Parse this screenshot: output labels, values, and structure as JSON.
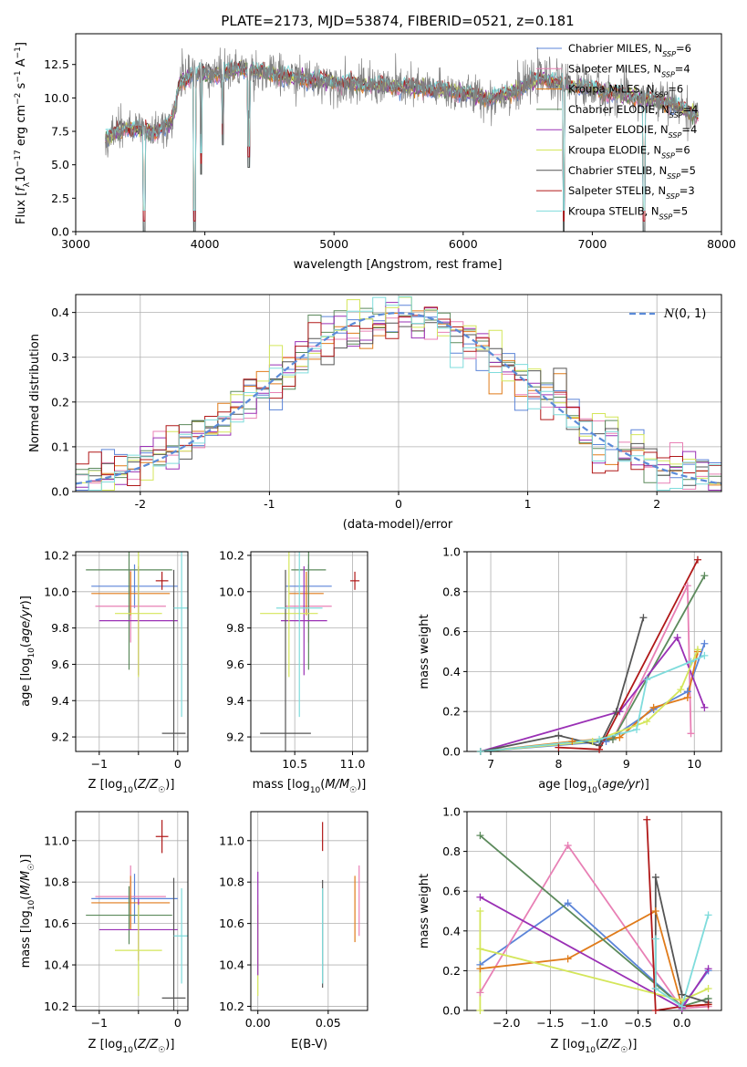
{
  "figure_title": "PLATE=2173, MJD=53874, FIBERID=0521, z=0.181",
  "colors": {
    "chabrier_miles": "#5b84d8",
    "salpeter_miles": "#e880b5",
    "kroupa_miles": "#e07b1a",
    "chabrier_elodie": "#5c8a5c",
    "salpeter_elodie": "#9a30b5",
    "kroupa_elodie": "#d4e65a",
    "chabrier_stelib": "#555555",
    "salpeter_stelib": "#b01818",
    "kroupa_stelib": "#7fdcdc",
    "data": "#808080",
    "normal_curve": "#5b8bd8",
    "grid": "#b0b0b0"
  },
  "chart_data": [
    {
      "id": "spectrum",
      "type": "line",
      "title": "PLATE=2173, MJD=53874, FIBERID=0521, z=0.181",
      "xlabel": "wavelength [Angstrom, rest frame]",
      "ylabel": "Flux [f_λ 10^-17 erg cm^-2 s^-1 A^-1]",
      "xlim": [
        3000,
        8000
      ],
      "ylim": [
        0,
        14.8
      ],
      "xticks": [
        3000,
        4000,
        5000,
        6000,
        7000,
        8000
      ],
      "yticks": [
        0.0,
        2.5,
        5.0,
        7.5,
        10.0,
        12.5
      ],
      "grid": false,
      "legend_position": "upper right",
      "legend": [
        "Chabrier MILES, N_SSP=6",
        "Salpeter MILES, N_SSP=4",
        "Kroupa MILES, N_SSP=6",
        "Chabrier ELODIE, N_SSP=4",
        "Salpeter ELODIE, N_SSP=4",
        "Kroupa ELODIE, N_SSP=6",
        "Chabrier STELIB, N_SSP=5",
        "Salpeter STELIB, N_SSP=3",
        "Kroupa STELIB, N_SSP=5"
      ],
      "continuum": [
        [
          3230,
          7.0
        ],
        [
          3400,
          7.8
        ],
        [
          3600,
          7.4
        ],
        [
          3750,
          8.3
        ],
        [
          3800,
          11.0
        ],
        [
          3900,
          11.8
        ],
        [
          4100,
          11.8
        ],
        [
          4300,
          12.2
        ],
        [
          4600,
          11.6
        ],
        [
          4900,
          11.3
        ],
        [
          5200,
          11.0
        ],
        [
          5600,
          10.8
        ],
        [
          6000,
          10.4
        ],
        [
          6200,
          9.9
        ],
        [
          6400,
          10.5
        ],
        [
          6600,
          11.5
        ],
        [
          6800,
          11.0
        ],
        [
          7200,
          10.3
        ],
        [
          7600,
          9.6
        ],
        [
          7820,
          8.7
        ]
      ],
      "dips": [
        [
          3530,
          0.0
        ],
        [
          3920,
          0.0
        ],
        [
          4140,
          6.5
        ],
        [
          4340,
          4.8
        ],
        [
          3970,
          4.3
        ],
        [
          6780,
          0.0
        ],
        [
          7400,
          0.0
        ]
      ]
    },
    {
      "id": "residuals",
      "type": "histogram",
      "xlabel": "(data-model)/error",
      "ylabel": "Normed distribution",
      "xlim": [
        -2.5,
        2.5
      ],
      "ylim": [
        0,
        0.44
      ],
      "xticks": [
        -2,
        -1,
        0,
        1,
        2
      ],
      "yticks": [
        0.0,
        0.1,
        0.2,
        0.3,
        0.4
      ],
      "grid": true,
      "legend_position": "upper right",
      "curve_label": "N(0,1)",
      "bin_width": 0.1
    },
    {
      "id": "age_vs_Z",
      "type": "scatter",
      "xlabel": "Z [log10(Z/Z☉)]",
      "ylabel": "age [log10(age/yr)]",
      "xlim": [
        -1.3,
        0.13
      ],
      "ylim": [
        9.12,
        10.22
      ],
      "xticks": [
        -1,
        -0.5,
        0
      ],
      "ytick_labels": [
        "9.2",
        "9.4",
        "9.6",
        "9.8",
        "10.0",
        "10.2"
      ],
      "xtick_labels": [
        "−1",
        "",
        "0"
      ],
      "grid": true,
      "points": [
        {
          "series": "chabrier_miles",
          "x": -0.55,
          "xerr": 0.55,
          "y": 10.03,
          "yerr": 0.12
        },
        {
          "series": "salpeter_miles",
          "x": -0.6,
          "xerr": 0.45,
          "y": 9.92,
          "yerr": 0.2
        },
        {
          "series": "kroupa_miles",
          "x": -0.6,
          "xerr": 0.5,
          "y": 9.99,
          "yerr": 0.12
        },
        {
          "series": "chabrier_elodie",
          "x": -0.62,
          "xerr": 0.55,
          "y": 10.12,
          "yerr": 0.55
        },
        {
          "series": "salpeter_elodie",
          "x": -0.5,
          "xerr": 0.5,
          "y": 9.84,
          "yerr": 0.3
        },
        {
          "series": "kroupa_elodie",
          "x": -0.5,
          "xerr": 0.3,
          "y": 9.88,
          "yerr": 0.35
        },
        {
          "series": "chabrier_stelib",
          "x": -0.05,
          "xerr": 0.15,
          "y": 9.22,
          "yerr": 0.9
        },
        {
          "series": "salpeter_stelib",
          "x": -0.2,
          "xerr": 0.08,
          "y": 10.06,
          "yerr": 0.05
        },
        {
          "series": "kroupa_stelib",
          "x": 0.05,
          "xerr": 0.1,
          "y": 9.91,
          "yerr": 0.6
        }
      ]
    },
    {
      "id": "age_vs_mass",
      "type": "scatter",
      "xlabel": "mass [log10(M/M☉)]",
      "ylabel": "",
      "xlim": [
        10.12,
        11.13
      ],
      "ylim": [
        9.12,
        10.22
      ],
      "xticks": [
        10.5,
        11.0
      ],
      "xtick_labels": [
        "10.5",
        "11.0"
      ],
      "ytick_labels": [
        "9.2",
        "9.4",
        "9.6",
        "9.8",
        "10.0",
        "10.2"
      ],
      "grid": true,
      "points": [
        {
          "series": "chabrier_miles",
          "x": 10.62,
          "xerr": 0.2,
          "y": 10.03,
          "yerr": 0.12
        },
        {
          "series": "salpeter_miles",
          "x": 10.62,
          "xerr": 0.2,
          "y": 9.92,
          "yerr": 0.2
        },
        {
          "series": "kroupa_miles",
          "x": 10.6,
          "xerr": 0.15,
          "y": 9.99,
          "yerr": 0.12
        },
        {
          "series": "chabrier_elodie",
          "x": 10.62,
          "xerr": 0.15,
          "y": 10.12,
          "yerr": 0.55
        },
        {
          "series": "salpeter_elodie",
          "x": 10.58,
          "xerr": 0.2,
          "y": 9.84,
          "yerr": 0.3
        },
        {
          "series": "kroupa_elodie",
          "x": 10.45,
          "xerr": 0.25,
          "y": 9.88,
          "yerr": 0.35
        },
        {
          "series": "chabrier_stelib",
          "x": 10.42,
          "xerr": 0.22,
          "y": 9.22,
          "yerr": 0.9
        },
        {
          "series": "salpeter_stelib",
          "x": 11.02,
          "xerr": 0.04,
          "y": 10.06,
          "yerr": 0.05
        },
        {
          "series": "kroupa_stelib",
          "x": 10.54,
          "xerr": 0.2,
          "y": 9.91,
          "yerr": 0.6
        }
      ]
    },
    {
      "id": "massweight_vs_age",
      "type": "line",
      "xlabel": "age [log10(age/yr)]",
      "ylabel": "mass weight",
      "xlim": [
        6.65,
        10.4
      ],
      "ylim": [
        0,
        1.0
      ],
      "xticks": [
        7,
        8,
        9,
        10
      ],
      "yticks": [
        0.0,
        0.2,
        0.4,
        0.6,
        0.8,
        1.0
      ],
      "grid": true,
      "series": [
        {
          "name": "chabrier_miles",
          "x": [
            6.85,
            8.7,
            9.4,
            9.9,
            10.15
          ],
          "y": [
            0.0,
            0.05,
            0.21,
            0.3,
            0.54
          ]
        },
        {
          "name": "salpeter_miles",
          "x": [
            6.85,
            8.8,
            9.9,
            9.95
          ],
          "y": [
            0.0,
            0.06,
            0.83,
            0.09
          ]
        },
        {
          "name": "kroupa_miles",
          "x": [
            6.85,
            8.2,
            8.9,
            9.4,
            9.9,
            10.05
          ],
          "y": [
            0.0,
            0.05,
            0.07,
            0.22,
            0.27,
            0.5
          ]
        },
        {
          "name": "chabrier_elodie",
          "x": [
            6.85,
            8.8,
            10.15
          ],
          "y": [
            0.0,
            0.06,
            0.88
          ]
        },
        {
          "name": "salpeter_elodie",
          "x": [
            6.85,
            8.9,
            9.75,
            10.15
          ],
          "y": [
            0.0,
            0.2,
            0.57,
            0.22
          ]
        },
        {
          "name": "kroupa_elodie",
          "x": [
            6.85,
            8.5,
            9.3,
            9.8,
            10.05
          ],
          "y": [
            0.0,
            0.05,
            0.15,
            0.31,
            0.51
          ]
        },
        {
          "name": "chabrier_stelib",
          "x": [
            6.85,
            8.0,
            8.6,
            8.85,
            9.25
          ],
          "y": [
            0.0,
            0.08,
            0.03,
            0.2,
            0.67
          ]
        },
        {
          "name": "salpeter_stelib",
          "x": [
            8.0,
            8.6,
            10.05
          ],
          "y": [
            0.02,
            0.01,
            0.96
          ]
        },
        {
          "name": "kroupa_stelib",
          "x": [
            6.85,
            8.6,
            9.15,
            9.3,
            9.95,
            10.15
          ],
          "y": [
            0.0,
            0.06,
            0.11,
            0.36,
            0.45,
            0.48
          ]
        }
      ]
    },
    {
      "id": "mass_vs_Z",
      "type": "scatter",
      "xlabel": "Z [log10(Z/Z☉)]",
      "ylabel": "mass [log10(M/M☉)]",
      "xlim": [
        -1.3,
        0.13
      ],
      "ylim": [
        10.18,
        11.14
      ],
      "xticks": [
        -1,
        -0.5,
        0
      ],
      "xtick_labels": [
        "−1",
        "",
        "0"
      ],
      "ytick_labels": [
        "10.2",
        "10.4",
        "10.6",
        "10.8",
        "11.0"
      ],
      "grid": true,
      "points": [
        {
          "series": "chabrier_miles",
          "x": -0.55,
          "xerr": 0.55,
          "y": 10.72,
          "yerr": 0.12
        },
        {
          "series": "salpeter_miles",
          "x": -0.6,
          "xerr": 0.45,
          "y": 10.73,
          "yerr": 0.15
        },
        {
          "series": "kroupa_miles",
          "x": -0.6,
          "xerr": 0.5,
          "y": 10.7,
          "yerr": 0.13
        },
        {
          "series": "chabrier_elodie",
          "x": -0.62,
          "xerr": 0.55,
          "y": 10.64,
          "yerr": 0.14
        },
        {
          "series": "salpeter_elodie",
          "x": -0.5,
          "xerr": 0.5,
          "y": 10.57,
          "yerr": 0.15
        },
        {
          "series": "kroupa_elodie",
          "x": -0.5,
          "xerr": 0.3,
          "y": 10.47,
          "yerr": 0.22
        },
        {
          "series": "chabrier_stelib",
          "x": -0.05,
          "xerr": 0.15,
          "y": 10.24,
          "yerr": 0.58
        },
        {
          "series": "salpeter_stelib",
          "x": -0.2,
          "xerr": 0.08,
          "y": 11.02,
          "yerr": 0.08
        },
        {
          "series": "kroupa_stelib",
          "x": 0.05,
          "xerr": 0.1,
          "y": 10.54,
          "yerr": 0.23
        }
      ]
    },
    {
      "id": "mass_vs_ebv",
      "type": "scatter",
      "xlabel": "E(B-V)",
      "ylabel": "",
      "xlim": [
        -0.005,
        0.078
      ],
      "ylim": [
        10.18,
        11.14
      ],
      "xticks": [
        0.0,
        0.05
      ],
      "xtick_labels": [
        "0.00",
        "0.05"
      ],
      "ytick_labels": [
        "10.2",
        "10.4",
        "10.6",
        "10.8",
        "11.0"
      ],
      "grid": true,
      "points": [
        {
          "series": "kroupa_elodie",
          "x": 0.0,
          "y": 10.47,
          "yerr": 0.22
        },
        {
          "series": "salpeter_elodie",
          "x": 0.0,
          "y": 10.6,
          "yerr": 0.25
        },
        {
          "series": "chabrier_stelib",
          "x": 0.046,
          "y": 10.55,
          "yerr": 0.26
        },
        {
          "series": "kroupa_stelib",
          "x": 0.046,
          "y": 10.54,
          "yerr": 0.23
        },
        {
          "series": "salpeter_stelib",
          "x": 0.046,
          "y": 11.02,
          "yerr": 0.07
        },
        {
          "series": "kroupa_miles",
          "x": 0.069,
          "y": 10.67,
          "yerr": 0.16
        },
        {
          "series": "salpeter_miles",
          "x": 0.072,
          "y": 10.71,
          "yerr": 0.17
        }
      ]
    },
    {
      "id": "massweight_vs_Z",
      "type": "line",
      "xlabel": "Z [log10(Z/Z☉)]",
      "ylabel": "mass weight",
      "xlim": [
        -2.45,
        0.45
      ],
      "ylim": [
        0,
        1.0
      ],
      "xticks": [
        -2.0,
        -1.5,
        -1.0,
        -0.5,
        0.0
      ],
      "xtick_labels": [
        "−2.0",
        "−1.5",
        "−1.0",
        "−0.5",
        "0.0"
      ],
      "yticks": [
        0.0,
        0.2,
        0.4,
        0.6,
        0.8,
        1.0
      ],
      "grid": true,
      "series": [
        {
          "name": "chabrier_miles",
          "x": [
            -2.3,
            -1.3,
            0.0,
            0.3
          ],
          "y": [
            0.23,
            0.54,
            0.02,
            0.2
          ]
        },
        {
          "name": "salpeter_miles",
          "x": [
            -2.3,
            -1.3,
            0.0,
            0.3
          ],
          "y": [
            0.09,
            0.83,
            0.01,
            0.02
          ]
        },
        {
          "name": "kroupa_miles",
          "x": [
            -2.3,
            -1.3,
            -0.3,
            0.0,
            0.3
          ],
          "y": [
            0.21,
            0.26,
            0.5,
            0.02,
            0.03
          ]
        },
        {
          "name": "chabrier_elodie",
          "x": [
            -2.3,
            0.0,
            0.3
          ],
          "y": [
            0.88,
            0.02,
            0.06
          ]
        },
        {
          "name": "salpeter_elodie",
          "x": [
            -2.3,
            0.0,
            0.3
          ],
          "y": [
            0.57,
            0.01,
            0.21
          ]
        },
        {
          "name": "kroupa_elodie",
          "x": [
            -2.3,
            -2.3,
            -2.3,
            0.0,
            0.3
          ],
          "y": [
            0.0,
            0.5,
            0.31,
            0.05,
            0.11
          ]
        },
        {
          "name": "chabrier_stelib",
          "x": [
            -0.3,
            -0.3,
            0.0,
            0.3
          ],
          "y": [
            0.11,
            0.67,
            0.08,
            0.04
          ]
        },
        {
          "name": "salpeter_stelib",
          "x": [
            -0.4,
            -0.3,
            0.0,
            0.3
          ],
          "y": [
            0.96,
            0.0,
            0.02,
            0.03
          ]
        },
        {
          "name": "kroupa_stelib",
          "x": [
            -0.3,
            -0.3,
            0.0,
            0.3
          ],
          "y": [
            0.36,
            0.11,
            0.02,
            0.48
          ]
        }
      ]
    }
  ]
}
